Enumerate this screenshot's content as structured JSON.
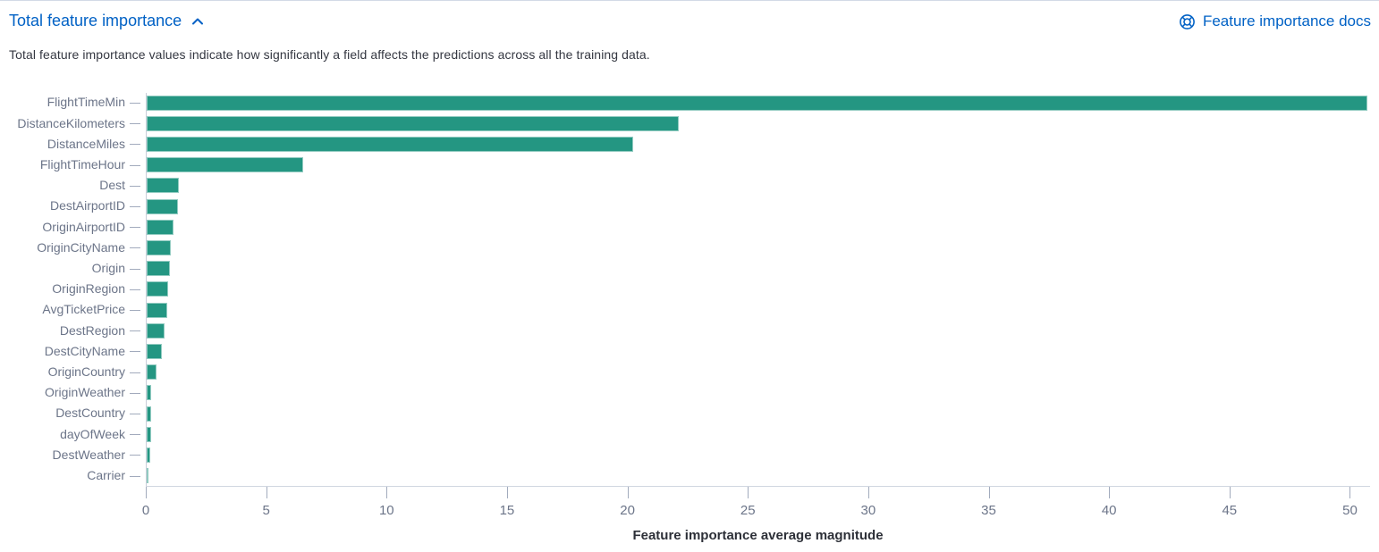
{
  "header": {
    "title": "Total feature importance",
    "collapse_icon": "chevron-up-icon",
    "docs_link_label": "Feature importance docs",
    "docs_icon": "documentation-lifering-icon",
    "link_color": "#0061c5"
  },
  "description": "Total feature importance values indicate how significantly a field affects the predictions across all the training data.",
  "chart_data": {
    "type": "bar",
    "orientation": "horizontal",
    "title": "",
    "xlabel": "Feature importance average magnitude",
    "ylabel": "",
    "categories": [
      "FlightTimeMin",
      "DistanceKilometers",
      "DistanceMiles",
      "FlightTimeHour",
      "Dest",
      "DestAirportID",
      "OriginAirportID",
      "OriginCityName",
      "Origin",
      "OriginRegion",
      "AvgTicketPrice",
      "DestRegion",
      "DestCityName",
      "OriginCountry",
      "OriginWeather",
      "DestCountry",
      "dayOfWeek",
      "DestWeather",
      "Carrier"
    ],
    "values": [
      50.7,
      22.1,
      20.2,
      6.5,
      1.35,
      1.3,
      1.1,
      1.0,
      0.95,
      0.9,
      0.85,
      0.73,
      0.62,
      0.42,
      0.2,
      0.19,
      0.17,
      0.16,
      0.08
    ],
    "x_ticks": [
      0,
      5,
      10,
      15,
      20,
      25,
      30,
      35,
      40,
      45,
      50
    ],
    "xlim": [
      0,
      50.8
    ],
    "bar_color": "#249682",
    "grid": false,
    "legend": "none"
  }
}
